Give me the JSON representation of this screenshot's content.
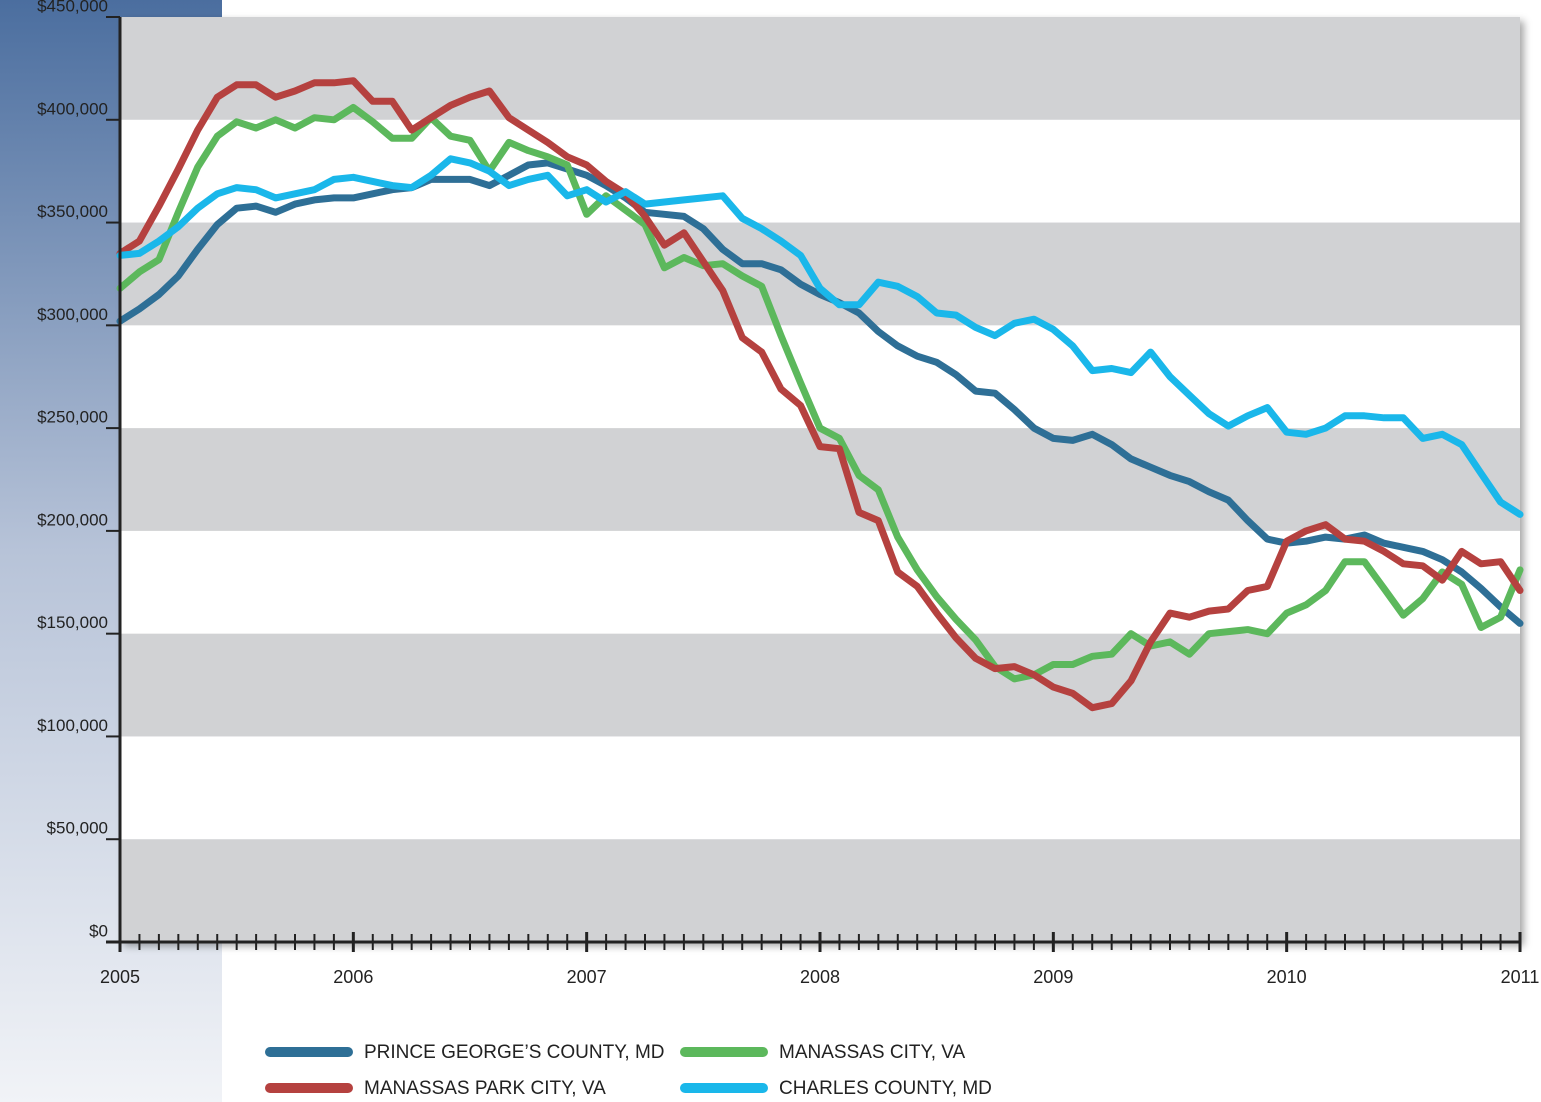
{
  "chart_data": {
    "type": "line",
    "x": [
      2005,
      2005.083,
      2005.167,
      2005.25,
      2005.333,
      2005.417,
      2005.5,
      2005.583,
      2005.667,
      2005.75,
      2005.833,
      2005.917,
      2006,
      2006.083,
      2006.167,
      2006.25,
      2006.333,
      2006.417,
      2006.5,
      2006.583,
      2006.667,
      2006.75,
      2006.833,
      2006.917,
      2007,
      2007.083,
      2007.167,
      2007.25,
      2007.333,
      2007.417,
      2007.5,
      2007.583,
      2007.667,
      2007.75,
      2007.833,
      2007.917,
      2008,
      2008.083,
      2008.167,
      2008.25,
      2008.333,
      2008.417,
      2008.5,
      2008.583,
      2008.667,
      2008.75,
      2008.833,
      2008.917,
      2009,
      2009.083,
      2009.167,
      2009.25,
      2009.333,
      2009.417,
      2009.5,
      2009.583,
      2009.667,
      2009.75,
      2009.833,
      2009.917,
      2010,
      2010.083,
      2010.167,
      2010.25,
      2010.333,
      2010.417,
      2010.5,
      2010.583,
      2010.667,
      2010.75,
      2010.833,
      2010.917,
      2011
    ],
    "series": [
      {
        "name": "PRINCE GEORGE’S COUNTY, MD",
        "color": "#2e6f96",
        "values": [
          302000,
          308000,
          315000,
          324000,
          337000,
          349000,
          357000,
          358000,
          355000,
          359000,
          361000,
          362000,
          362000,
          364000,
          366000,
          367000,
          371000,
          371000,
          371000,
          368000,
          373000,
          378000,
          379000,
          376000,
          373000,
          368000,
          362000,
          355000,
          354000,
          353000,
          347000,
          337000,
          330000,
          330000,
          327000,
          320000,
          315000,
          311000,
          306000,
          297000,
          290000,
          285000,
          282000,
          276000,
          268000,
          267000,
          259000,
          250000,
          245000,
          244000,
          247000,
          242000,
          235000,
          231000,
          227000,
          224000,
          219000,
          215000,
          205000,
          196000,
          194000,
          195000,
          197000,
          196000,
          198000,
          194000,
          192000,
          190000,
          186000,
          180000,
          172000,
          163000,
          155000
        ]
      },
      {
        "name": "MANASSAS CITY, VA",
        "color": "#5cb85c",
        "values": [
          318000,
          326000,
          332000,
          355000,
          377000,
          392000,
          399000,
          396000,
          400000,
          396000,
          401000,
          400000,
          406000,
          399000,
          391000,
          391000,
          401000,
          392000,
          390000,
          375000,
          389000,
          385000,
          382000,
          378000,
          354000,
          363000,
          356000,
          349000,
          328000,
          333000,
          329000,
          330000,
          324000,
          319000,
          295000,
          272000,
          250000,
          245000,
          227000,
          220000,
          197000,
          181000,
          168000,
          157000,
          147000,
          134000,
          128000,
          130000,
          135000,
          135000,
          139000,
          140000,
          150000,
          144000,
          146000,
          140000,
          150000,
          151000,
          152000,
          150000,
          160000,
          164000,
          171000,
          185000,
          185000,
          172000,
          159000,
          167000,
          180000,
          174000,
          153000,
          158000,
          181000
        ]
      },
      {
        "name": "MANASSAS PARK CITY, VA",
        "color": "#b5413f",
        "values": [
          335000,
          341000,
          358000,
          376000,
          395000,
          411000,
          417000,
          417000,
          411000,
          414000,
          418000,
          418000,
          419000,
          409000,
          409000,
          395000,
          401000,
          407000,
          411000,
          414000,
          401000,
          395000,
          389000,
          382000,
          378000,
          370000,
          364000,
          353000,
          339000,
          345000,
          331000,
          317000,
          294000,
          287000,
          269000,
          261000,
          241000,
          240000,
          209000,
          205000,
          180000,
          173000,
          160000,
          148000,
          138000,
          133000,
          134000,
          130000,
          124000,
          121000,
          114000,
          116000,
          127000,
          146000,
          160000,
          158000,
          161000,
          162000,
          171000,
          173000,
          195000,
          200000,
          203000,
          196000,
          195000,
          190000,
          184000,
          183000,
          176000,
          190000,
          184000,
          185000,
          171000
        ]
      },
      {
        "name": "CHARLES COUNTY, MD",
        "color": "#1ab7ea",
        "values": [
          334000,
          335000,
          341000,
          348000,
          357000,
          364000,
          367000,
          366000,
          362000,
          364000,
          366000,
          371000,
          372000,
          370000,
          368000,
          367000,
          373000,
          381000,
          379000,
          375000,
          368000,
          371000,
          373000,
          363000,
          366000,
          360000,
          365000,
          359000,
          360000,
          361000,
          362000,
          363000,
          352000,
          347000,
          341000,
          334000,
          318000,
          310000,
          310000,
          321000,
          319000,
          314000,
          306000,
          305000,
          299000,
          295000,
          301000,
          303000,
          298000,
          290000,
          278000,
          279000,
          277000,
          287000,
          275000,
          266000,
          257000,
          251000,
          256000,
          260000,
          248000,
          247000,
          250000,
          256000,
          256000,
          255000,
          255000,
          245000,
          247000,
          242000,
          228000,
          214000,
          208000
        ]
      }
    ],
    "xlim": [
      2005,
      2011
    ],
    "xticks": [
      2005,
      2006,
      2007,
      2008,
      2009,
      2010,
      2011
    ],
    "ylim": [
      0,
      450000
    ],
    "yticks": [
      {
        "value": 0,
        "label": "$0"
      },
      {
        "value": 50000,
        "label": "$50,000"
      },
      {
        "value": 100000,
        "label": "$100,000"
      },
      {
        "value": 150000,
        "label": "$150,000"
      },
      {
        "value": 200000,
        "label": "$200,000"
      },
      {
        "value": 250000,
        "label": "$250,000"
      },
      {
        "value": 300000,
        "label": "$300,000"
      },
      {
        "value": 350000,
        "label": "$350,000"
      },
      {
        "value": 400000,
        "label": "$400,000"
      },
      {
        "value": 450000,
        "label": "$450,000"
      }
    ],
    "grid": true,
    "legend": "bottom"
  }
}
